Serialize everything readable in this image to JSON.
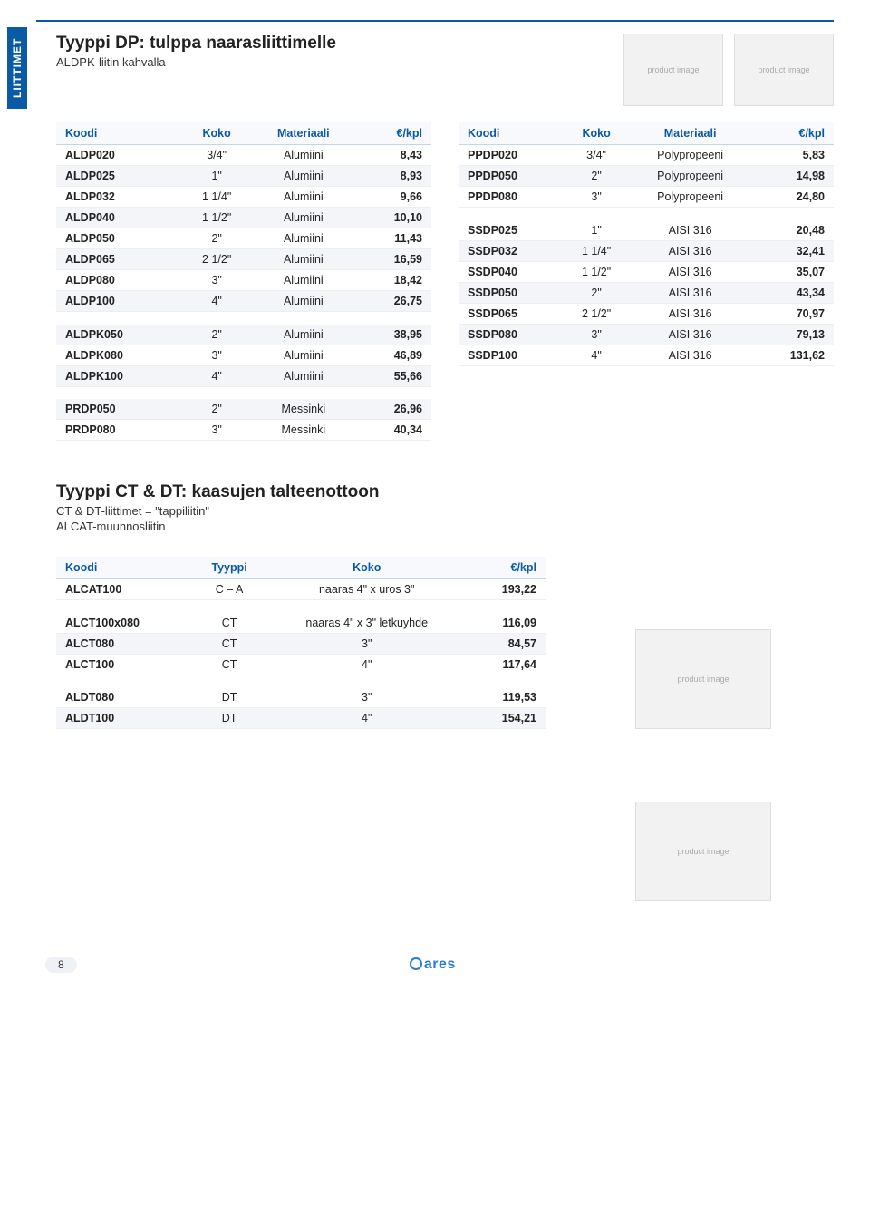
{
  "sideTab": "LIITTIMET",
  "section1": {
    "title": "Tyyppi DP: tulppa naarasliittimelle",
    "subtitle": "ALDPK-liitin kahvalla"
  },
  "table1_left": {
    "headers": [
      "Koodi",
      "Koko",
      "Materiaali",
      "€/kpl"
    ],
    "groups": [
      [
        [
          "ALDP020",
          "3/4\"",
          "Alumiini",
          "8,43"
        ],
        [
          "ALDP025",
          "1\"",
          "Alumiini",
          "8,93"
        ],
        [
          "ALDP032",
          "1 1/4\"",
          "Alumiini",
          "9,66"
        ],
        [
          "ALDP040",
          "1 1/2\"",
          "Alumiini",
          "10,10"
        ],
        [
          "ALDP050",
          "2\"",
          "Alumiini",
          "11,43"
        ],
        [
          "ALDP065",
          "2 1/2\"",
          "Alumiini",
          "16,59"
        ],
        [
          "ALDP080",
          "3\"",
          "Alumiini",
          "18,42"
        ],
        [
          "ALDP100",
          "4\"",
          "Alumiini",
          "26,75"
        ]
      ],
      [
        [
          "ALDPK050",
          "2\"",
          "Alumiini",
          "38,95"
        ],
        [
          "ALDPK080",
          "3\"",
          "Alumiini",
          "46,89"
        ],
        [
          "ALDPK100",
          "4\"",
          "Alumiini",
          "55,66"
        ]
      ],
      [
        [
          "PRDP050",
          "2\"",
          "Messinki",
          "26,96"
        ],
        [
          "PRDP080",
          "3\"",
          "Messinki",
          "40,34"
        ]
      ]
    ]
  },
  "table1_right": {
    "headers": [
      "Koodi",
      "Koko",
      "Materiaali",
      "€/kpl"
    ],
    "groups": [
      [
        [
          "PPDP020",
          "3/4\"",
          "Polypropeeni",
          "5,83"
        ],
        [
          "PPDP050",
          "2\"",
          "Polypropeeni",
          "14,98"
        ],
        [
          "PPDP080",
          "3\"",
          "Polypropeeni",
          "24,80"
        ]
      ],
      [
        [
          "SSDP025",
          "1\"",
          "AISI 316",
          "20,48"
        ],
        [
          "SSDP032",
          "1 1/4\"",
          "AISI 316",
          "32,41"
        ],
        [
          "SSDP040",
          "1 1/2\"",
          "AISI 316",
          "35,07"
        ],
        [
          "SSDP050",
          "2\"",
          "AISI 316",
          "43,34"
        ],
        [
          "SSDP065",
          "2 1/2\"",
          "AISI 316",
          "70,97"
        ],
        [
          "SSDP080",
          "3\"",
          "AISI 316",
          "79,13"
        ],
        [
          "SSDP100",
          "4\"",
          "AISI 316",
          "131,62"
        ]
      ]
    ]
  },
  "section2": {
    "title": "Tyyppi CT & DT: kaasujen talteenottoon",
    "subtitle1": "CT & DT-liittimet = \"tappiliitin\"",
    "subtitle2": "ALCAT-muunnosliitin"
  },
  "table2": {
    "headers": [
      "Koodi",
      "Tyyppi",
      "Koko",
      "€/kpl"
    ],
    "groups": [
      [
        [
          "ALCAT100",
          "C – A",
          "naaras 4\" x uros 3\"",
          "193,22"
        ]
      ],
      [
        [
          "ALCT100x080",
          "CT",
          "naaras 4\" x 3\" letkuyhde",
          "116,09"
        ],
        [
          "ALCT080",
          "CT",
          "3\"",
          "84,57"
        ],
        [
          "ALCT100",
          "CT",
          "4\"",
          "117,64"
        ]
      ],
      [
        [
          "ALDT080",
          "DT",
          "3\"",
          "119,53"
        ],
        [
          "ALDT100",
          "DT",
          "4\"",
          "154,21"
        ]
      ]
    ]
  },
  "pageNumber": "8",
  "logoText": "ares",
  "imgLabel": "product image"
}
